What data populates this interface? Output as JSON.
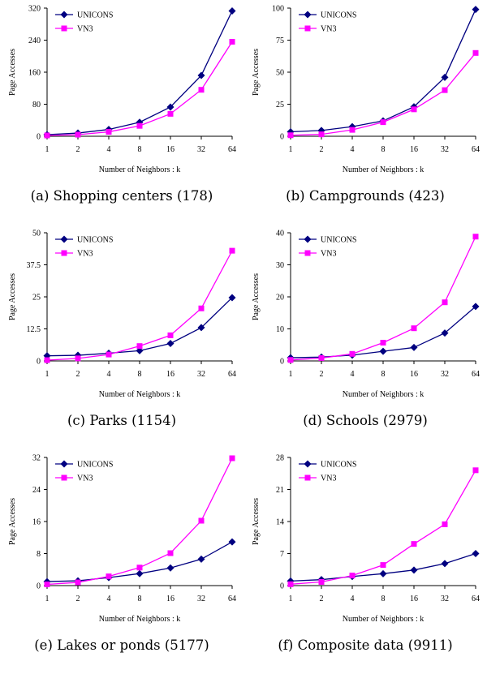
{
  "chart_data": [
    {
      "type": "line",
      "caption": "(a) Shopping centers (178)",
      "xlabel": "Number of Neighbors : k",
      "ylabel": "Page Accesses",
      "categories": [
        "1",
        "2",
        "4",
        "8",
        "16",
        "32",
        "64"
      ],
      "yticks": [
        "0",
        "80",
        "160",
        "240",
        "320"
      ],
      "ylim": [
        0,
        320
      ],
      "legend_position": "top-left",
      "series": [
        {
          "name": "UNICONS",
          "color": "#000080",
          "marker": "diamond",
          "values": [
            4,
            8,
            17,
            35,
            73,
            152,
            313
          ]
        },
        {
          "name": "VN3",
          "color": "#ff00ff",
          "marker": "square",
          "values": [
            2,
            4,
            11,
            26,
            56,
            116,
            236
          ]
        }
      ]
    },
    {
      "type": "line",
      "caption": "(b) Campgrounds (423)",
      "xlabel": "Number of Neighbors : k",
      "ylabel": "Page Accesses",
      "categories": [
        "1",
        "2",
        "4",
        "8",
        "16",
        "32",
        "64"
      ],
      "yticks": [
        "0",
        "25",
        "50",
        "75",
        "100"
      ],
      "ylim": [
        0,
        100
      ],
      "legend_position": "top-left",
      "series": [
        {
          "name": "UNICONS",
          "color": "#000080",
          "marker": "diamond",
          "values": [
            3.5,
            4.5,
            7.5,
            12,
            23,
            46,
            99
          ]
        },
        {
          "name": "VN3",
          "color": "#ff00ff",
          "marker": "square",
          "values": [
            0.8,
            1.5,
            5,
            11,
            21,
            36,
            65
          ]
        }
      ]
    },
    {
      "type": "line",
      "caption": "(c) Parks (1154)",
      "xlabel": "Number of Neighbors : k",
      "ylabel": "Page Accesses",
      "categories": [
        "1",
        "2",
        "4",
        "8",
        "16",
        "32",
        "64"
      ],
      "yticks": [
        "0",
        "12.5",
        "25",
        "37.5",
        "50"
      ],
      "ylim": [
        0,
        50
      ],
      "legend_position": "top-left",
      "series": [
        {
          "name": "UNICONS",
          "color": "#000080",
          "marker": "diamond",
          "values": [
            2,
            2.2,
            3,
            4,
            6.8,
            13,
            24.7
          ]
        },
        {
          "name": "VN3",
          "color": "#ff00ff",
          "marker": "square",
          "values": [
            0.3,
            1,
            2.5,
            5.8,
            10,
            20.5,
            43
          ]
        }
      ]
    },
    {
      "type": "line",
      "caption": "(d) Schools (2979)",
      "xlabel": "Number of Neighbors : k",
      "ylabel": "Page Accesses",
      "categories": [
        "1",
        "2",
        "4",
        "8",
        "16",
        "32",
        "64"
      ],
      "yticks": [
        "0",
        "10",
        "20",
        "30",
        "40"
      ],
      "ylim": [
        0,
        40
      ],
      "legend_position": "top-left",
      "series": [
        {
          "name": "UNICONS",
          "color": "#000080",
          "marker": "diamond",
          "values": [
            1,
            1.2,
            1.8,
            3,
            4.2,
            8.7,
            17
          ]
        },
        {
          "name": "VN3",
          "color": "#ff00ff",
          "marker": "square",
          "values": [
            0.3,
            0.9,
            2.2,
            5.7,
            10.2,
            18.3,
            38.8
          ]
        }
      ]
    },
    {
      "type": "line",
      "caption": "(e) Lakes or ponds (5177)",
      "xlabel": "Number of Neighbors : k",
      "ylabel": "Page Accesses",
      "categories": [
        "1",
        "2",
        "4",
        "8",
        "16",
        "32",
        "64"
      ],
      "yticks": [
        "0",
        "8",
        "16",
        "24",
        "32"
      ],
      "ylim": [
        0,
        32
      ],
      "legend_position": "top-left",
      "series": [
        {
          "name": "UNICONS",
          "color": "#000080",
          "marker": "diamond",
          "values": [
            1,
            1.2,
            2,
            3,
            4.4,
            6.6,
            10.9
          ]
        },
        {
          "name": "VN3",
          "color": "#ff00ff",
          "marker": "square",
          "values": [
            0.3,
            0.8,
            2.3,
            4.5,
            8.1,
            16.2,
            31.8
          ]
        }
      ]
    },
    {
      "type": "line",
      "caption": "(f) Composite data (9911)",
      "xlabel": "Number of Neighbors : k",
      "ylabel": "Page Accesses",
      "categories": [
        "1",
        "2",
        "4",
        "8",
        "16",
        "32",
        "64"
      ],
      "yticks": [
        "0",
        "7",
        "14",
        "21",
        "28"
      ],
      "ylim": [
        0,
        28
      ],
      "legend_position": "top-left",
      "series": [
        {
          "name": "UNICONS",
          "color": "#000080",
          "marker": "diamond",
          "values": [
            1,
            1.3,
            2,
            2.6,
            3.4,
            4.8,
            7
          ]
        },
        {
          "name": "VN3",
          "color": "#ff00ff",
          "marker": "square",
          "values": [
            0.3,
            0.8,
            2.2,
            4.5,
            9.1,
            13.4,
            25.2
          ]
        }
      ]
    }
  ]
}
